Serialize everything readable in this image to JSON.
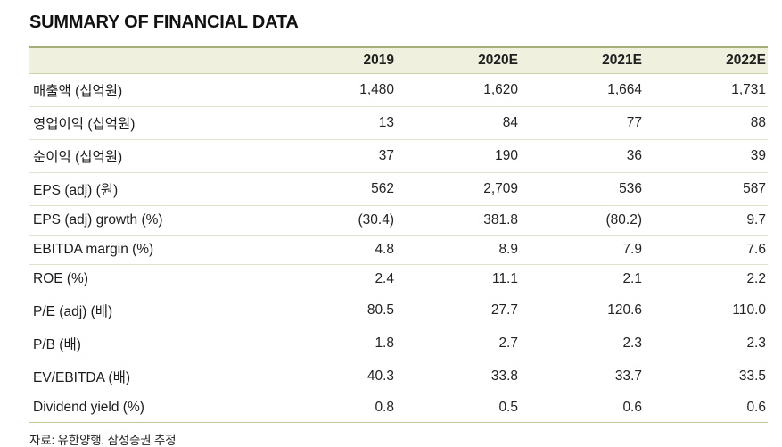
{
  "title": "SUMMARY OF FINANCIAL DATA",
  "table": {
    "columns": [
      "",
      "2019",
      "2020E",
      "2021E",
      "2022E"
    ],
    "rows": [
      {
        "label": "매출액 (십억원)",
        "values": [
          "1,480",
          "1,620",
          "1,664",
          "1,731"
        ]
      },
      {
        "label": "영업이익 (십억원)",
        "values": [
          "13",
          "84",
          "77",
          "88"
        ]
      },
      {
        "label": "순이익 (십억원)",
        "values": [
          "37",
          "190",
          "36",
          "39"
        ]
      },
      {
        "label": "EPS (adj) (원)",
        "values": [
          "562",
          "2,709",
          "536",
          "587"
        ]
      },
      {
        "label": "EPS (adj) growth (%)",
        "values": [
          "(30.4)",
          "381.8",
          "(80.2)",
          "9.7"
        ]
      },
      {
        "label": "EBITDA margin (%)",
        "values": [
          "4.8",
          "8.9",
          "7.9",
          "7.6"
        ]
      },
      {
        "label": "ROE (%)",
        "values": [
          "2.4",
          "11.1",
          "2.1",
          "2.2"
        ]
      },
      {
        "label": "P/E (adj) (배)",
        "values": [
          "80.5",
          "27.7",
          "120.6",
          "110.0"
        ]
      },
      {
        "label": "P/B (배)",
        "values": [
          "1.8",
          "2.7",
          "2.3",
          "2.3"
        ]
      },
      {
        "label": "EV/EBITDA (배)",
        "values": [
          "40.3",
          "33.8",
          "33.7",
          "33.5"
        ]
      },
      {
        "label": "Dividend yield (%)",
        "values": [
          "0.8",
          "0.5",
          "0.6",
          "0.6"
        ]
      }
    ]
  },
  "source": "자료: 유한양행, 삼성증권 추정",
  "colors": {
    "header_bg": "#eff1de",
    "header_top_border": "#a4ae79",
    "header_bottom_border": "#ccd3a9",
    "row_divider": "#dfe3cd",
    "table_bottom_border": "#bfc897",
    "text": "#1c1c1c"
  }
}
